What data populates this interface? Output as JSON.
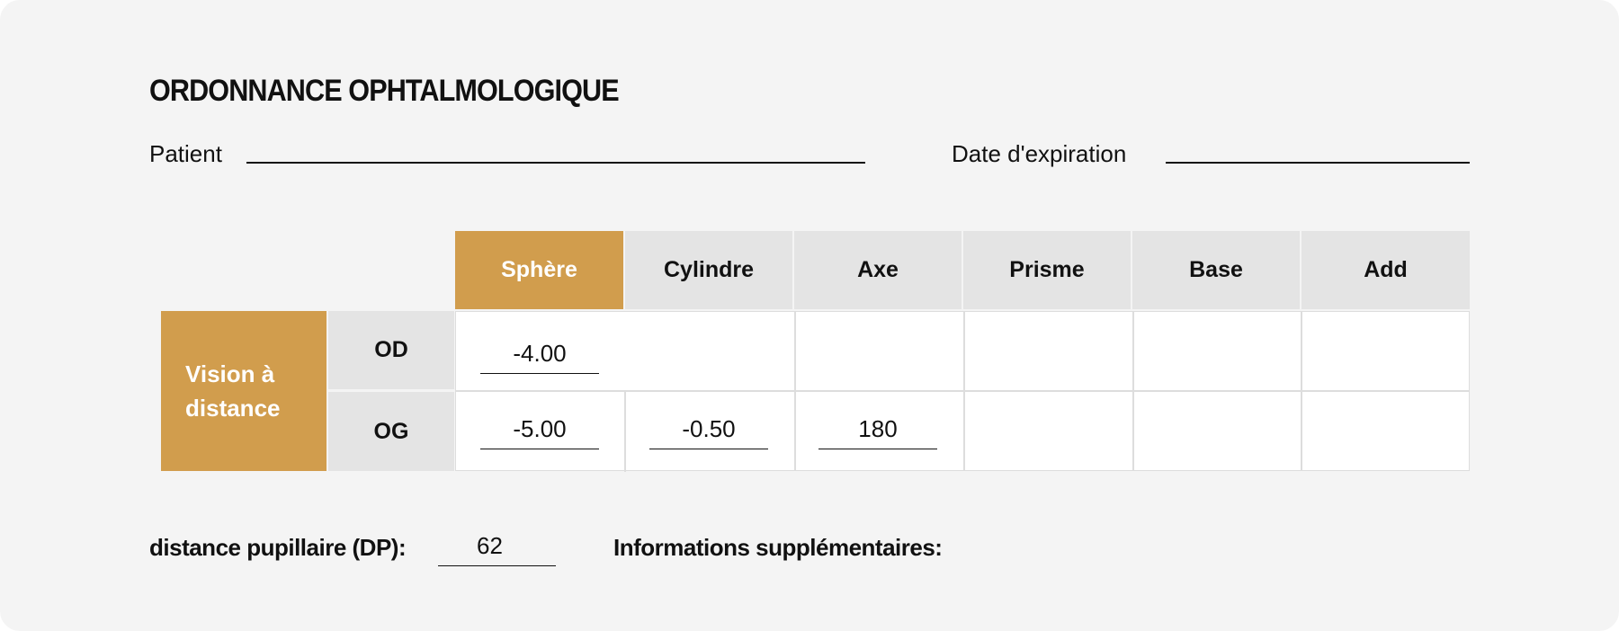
{
  "title": "ORDONNANCE OPHTALMOLOGIQUE",
  "fields": {
    "patient_label": "Patient",
    "patient_value": "",
    "expiry_label": "Date d'expiration",
    "expiry_value": ""
  },
  "table": {
    "columns": [
      "Sphère",
      "Cylindre",
      "Axe",
      "Prisme",
      "Base",
      "Add"
    ],
    "section_label": "Vision à distance",
    "rows": [
      {
        "label": "OD",
        "values": [
          "-4.00",
          "",
          "",
          "",
          "",
          ""
        ]
      },
      {
        "label": "OG",
        "values": [
          "-5.00",
          "-0.50",
          "180",
          "",
          "",
          ""
        ]
      }
    ]
  },
  "footer": {
    "pd_label": "distance pupillaire (DP):",
    "pd_value": "62",
    "info_label": "Informations supplémentaires:"
  },
  "colors": {
    "accent": "#d19d4d",
    "header_bg": "#e4e4e4",
    "card_bg": "#f4f4f4"
  }
}
